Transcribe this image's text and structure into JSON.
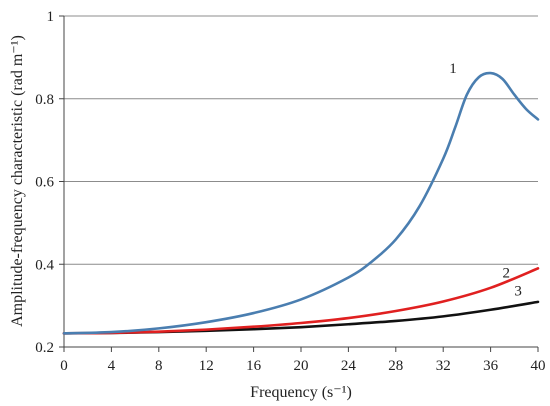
{
  "chart_data": {
    "type": "line",
    "title": "",
    "xlabel": "Frequency (s⁻¹)",
    "ylabel": "Amplitude-frequency characteristic (rad m⁻¹)",
    "xlim": [
      0,
      40
    ],
    "ylim": [
      0.2,
      1.0
    ],
    "x_ticks": [
      0,
      4,
      8,
      12,
      16,
      20,
      24,
      28,
      32,
      36,
      40
    ],
    "x_tick_labels": [
      "0",
      "4",
      "8",
      "12",
      "16",
      "20",
      "24",
      "28",
      "32",
      "36",
      "40"
    ],
    "y_ticks": [
      0.2,
      0.4,
      0.6,
      0.8,
      1.0
    ],
    "y_tick_labels": [
      "0.2",
      "0.4",
      "0.6",
      "0.8",
      "1"
    ],
    "grid": "horizontal",
    "legend": "none",
    "series": [
      {
        "label": "1",
        "color": "#4a7eb0",
        "x": [
          0,
          4,
          8,
          12,
          16,
          20,
          24,
          26,
          28,
          30,
          32,
          33,
          34,
          35,
          36,
          37,
          38,
          39,
          40
        ],
        "y": [
          0.233,
          0.236,
          0.245,
          0.26,
          0.282,
          0.315,
          0.368,
          0.407,
          0.46,
          0.54,
          0.655,
          0.73,
          0.81,
          0.852,
          0.862,
          0.848,
          0.81,
          0.775,
          0.75
        ]
      },
      {
        "label": "2",
        "color": "#e02020",
        "x": [
          0,
          4,
          8,
          12,
          16,
          20,
          24,
          28,
          32,
          36,
          40
        ],
        "y": [
          0.233,
          0.234,
          0.237,
          0.242,
          0.249,
          0.258,
          0.27,
          0.287,
          0.31,
          0.343,
          0.39
        ]
      },
      {
        "label": "3",
        "color": "#111111",
        "x": [
          0,
          4,
          8,
          12,
          16,
          20,
          24,
          28,
          32,
          36,
          40
        ],
        "y": [
          0.233,
          0.234,
          0.236,
          0.239,
          0.243,
          0.248,
          0.255,
          0.263,
          0.274,
          0.29,
          0.309
        ]
      }
    ],
    "annotations": [
      "1",
      "2",
      "3"
    ]
  }
}
